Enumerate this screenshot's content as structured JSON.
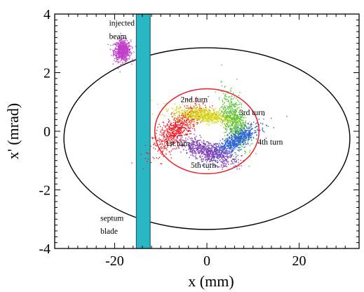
{
  "chart_data": {
    "type": "scatter",
    "title": "",
    "xlabel": "x (mm)",
    "ylabel": "x' (mrad)",
    "xlim": [
      -33,
      33
    ],
    "ylim": [
      -4,
      4
    ],
    "x_ticks": [
      -20,
      0,
      20
    ],
    "y_ticks": [
      -4,
      -2,
      0,
      2,
      4
    ],
    "x_tick_labels": [
      "-20",
      "0",
      "20"
    ],
    "y_tick_labels": [
      "-4",
      "-2",
      "0",
      "2",
      "4"
    ],
    "grid": false,
    "acceptance_ellipse": {
      "center": [
        0,
        -0.25
      ],
      "semi_axes": [
        31,
        3.1
      ],
      "color": "#000000"
    },
    "beam_ellipse": {
      "center": [
        0,
        0
      ],
      "semi_axes": [
        11.3,
        1.45
      ],
      "color": "#e8202a"
    },
    "septum_blade": {
      "x_range": [
        -15.3,
        -12.3
      ],
      "y_range": [
        -4,
        4
      ],
      "color": "#2ab7c4"
    },
    "series": [
      {
        "label": "injected beam",
        "center": [
          -18.3,
          2.75
        ],
        "spread": [
          0.9,
          0.18
        ],
        "color": "#c040c8"
      },
      {
        "label": "1st turn",
        "center": [
          -6.5,
          0.05
        ],
        "spread": [
          2.6,
          0.26
        ],
        "tilt": 0.12,
        "color": "#ee1c25"
      },
      {
        "label": "2nd turn",
        "center": [
          -0.5,
          0.55
        ],
        "spread": [
          3.4,
          0.13
        ],
        "tilt": -0.02,
        "color": "#d5d515"
      },
      {
        "label": "3rd turn",
        "center": [
          6.0,
          0.35
        ],
        "spread": [
          1.4,
          0.42
        ],
        "tilt": -0.15,
        "color": "#5cc33a"
      },
      {
        "label": "4th turn",
        "center": [
          6.2,
          -0.35
        ],
        "spread": [
          2.6,
          0.16
        ],
        "tilt": 0.09,
        "color": "#2f62d8"
      },
      {
        "label": "5th turn",
        "center": [
          0.2,
          -0.7
        ],
        "spread": [
          3.0,
          0.17
        ],
        "tilt": -0.05,
        "color": "#7d3fb5"
      }
    ],
    "annotations": [
      {
        "text": "injected",
        "pos": [
          -21.2,
          3.6
        ]
      },
      {
        "text": "beam",
        "pos": [
          -21.2,
          3.15
        ]
      },
      {
        "text": "2nd turn",
        "pos": [
          -5.7,
          1.0
        ]
      },
      {
        "text": "3rd turn",
        "pos": [
          7.0,
          0.55
        ]
      },
      {
        "text": "1st turn",
        "pos": [
          -9.0,
          -0.5
        ]
      },
      {
        "text": "4th turn",
        "pos": [
          11.0,
          -0.45
        ]
      },
      {
        "text": "5th turn",
        "pos": [
          -3.5,
          -1.25
        ]
      },
      {
        "text": "septum",
        "pos": [
          -23.1,
          -3.05
        ]
      },
      {
        "text": "blade",
        "pos": [
          -23.1,
          -3.5
        ]
      }
    ]
  }
}
